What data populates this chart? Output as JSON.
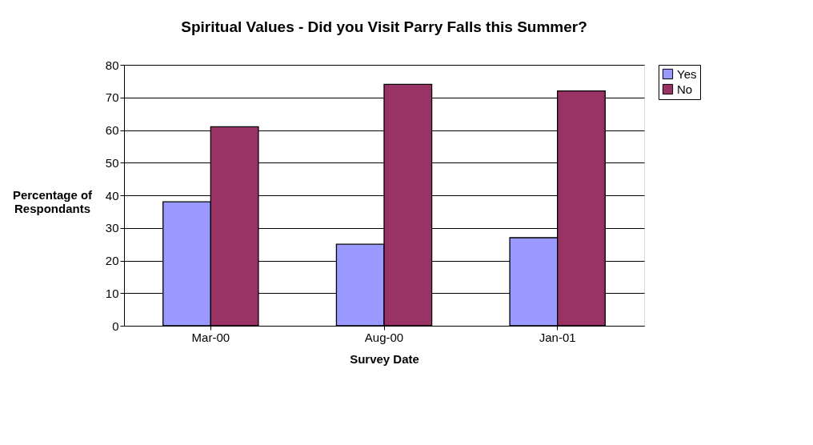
{
  "chart_data": {
    "type": "bar",
    "title": "Spiritual Values - Did you Visit Parry Falls this Summer?",
    "xlabel": "Survey Date",
    "ylabel": "Percentage of Respondants",
    "categories": [
      "Mar-00",
      "Aug-00",
      "Jan-01"
    ],
    "series": [
      {
        "name": "Yes",
        "color": "#9999ff",
        "values": [
          38,
          25,
          27
        ]
      },
      {
        "name": "No",
        "color": "#993366",
        "values": [
          61,
          74,
          72
        ]
      }
    ],
    "ylim": [
      0,
      80
    ],
    "yticks": [
      0,
      10,
      20,
      30,
      40,
      50,
      60,
      70,
      80
    ],
    "grid": "y",
    "legend": "right"
  }
}
